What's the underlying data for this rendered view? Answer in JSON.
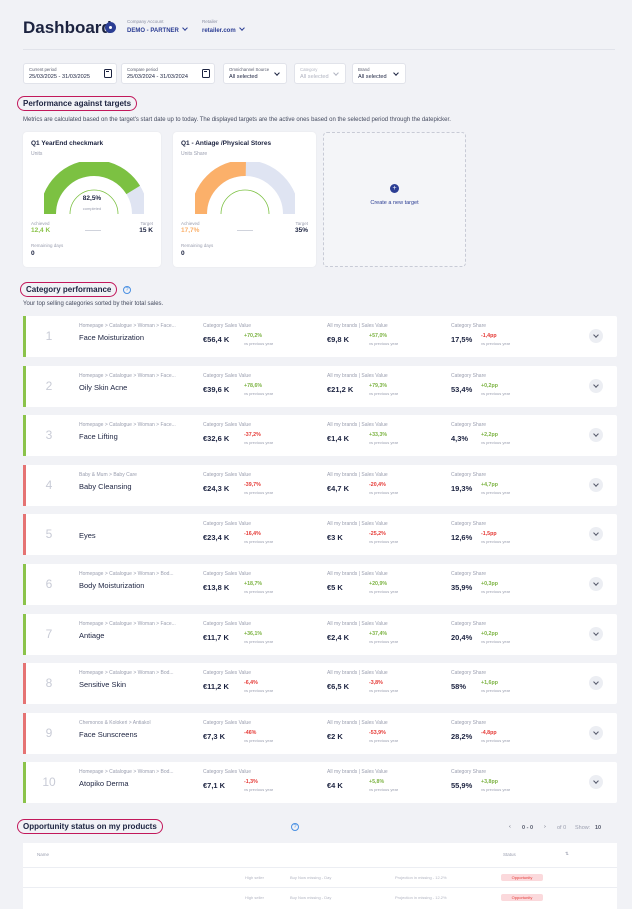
{
  "header": {
    "title": "Dashboard",
    "company_account_label": "Company Account",
    "company_account_value": "DEMO - PARTNER",
    "retailer_label": "Retailer",
    "retailer_value": "retailer.com"
  },
  "filters": {
    "current_period_label": "Current period",
    "current_period_value": "25/03/2025 - 31/03/2025",
    "compare_period_label": "Compare period",
    "compare_period_value": "25/03/2024 - 31/03/2024",
    "omnichannel_label": "Omnichannel Source",
    "omnichannel_value": "All selected",
    "category_label": "Category",
    "category_value": "All selected",
    "brand_label": "Brand",
    "brand_value": "All selected"
  },
  "targets": {
    "title": "Performance against targets",
    "description": "Metrics are calculated based on the target's start date up to today. The displayed targets are the active ones based on the selected period through the datepicker.",
    "cards": [
      {
        "title": "Q1 YearEnd checkmark",
        "unit": "Units",
        "center_value": "82,5%",
        "center_label": "completed",
        "achieved_label": "Achieved",
        "achieved_value": "12,4 K",
        "target_label": "Target",
        "target_value": "15 K",
        "remaining_label": "Remaining days",
        "remaining_value": "0",
        "progress": 0.825,
        "color": "#7cc142"
      },
      {
        "title": "Q1 - Antiage /Physical Stores",
        "unit": "Units Share",
        "achieved_label": "Achieved",
        "achieved_value": "17,7%",
        "target_label": "Target",
        "target_value": "35%",
        "remaining_label": "Remaining days",
        "remaining_value": "0",
        "progress": 0.506,
        "color": "#fbb06a"
      }
    ],
    "new_target_label": "Create a new target"
  },
  "category": {
    "title": "Category performance",
    "help": "?",
    "description": "Your top selling categories sorted by their total sales.",
    "col1_label": "Category Sales Value",
    "col2_label": "All my brands | Sales Value",
    "col3_label": "Category Share",
    "vs_label": "vs previous year",
    "rows": [
      {
        "rank": "1",
        "path": "Homepage > Catalogue > Woman > Face...",
        "name": "Face Moisturization",
        "v1": "€56,4 K",
        "p1": "+70,2%",
        "v2": "€9,8 K",
        "p2": "+57,0%",
        "v3": "17,5%",
        "p3": "-1,4pp",
        "trend": "pos",
        "d1": "pos",
        "d2": "pos",
        "d3": "neg"
      },
      {
        "rank": "2",
        "path": "Homepage > Catalogue > Woman > Face...",
        "name": "Oily Skin Acne",
        "v1": "€39,6 K",
        "p1": "+78,6%",
        "v2": "€21,2 K",
        "p2": "+79,3%",
        "v3": "53,4%",
        "p3": "+0,2pp",
        "trend": "pos",
        "d1": "pos",
        "d2": "pos",
        "d3": "pos"
      },
      {
        "rank": "3",
        "path": "Homepage > Catalogue > Woman > Face...",
        "name": "Face Lifting",
        "v1": "€32,6 K",
        "p1": "-37,2%",
        "v2": "€1,4 K",
        "p2": "+33,3%",
        "v3": "4,3%",
        "p3": "+2,2pp",
        "trend": "pos",
        "d1": "neg",
        "d2": "pos",
        "d3": "pos"
      },
      {
        "rank": "4",
        "path": "Baby & Mum > Baby Care",
        "name": "Baby Cleansing",
        "v1": "€24,3 K",
        "p1": "-39,7%",
        "v2": "€4,7 K",
        "p2": "-20,4%",
        "v3": "19,3%",
        "p3": "+4,7pp",
        "trend": "neg",
        "d1": "neg",
        "d2": "neg",
        "d3": "pos"
      },
      {
        "rank": "5",
        "path": "",
        "name": "Eyes",
        "v1": "€23,4 K",
        "p1": "-16,4%",
        "v2": "€3 K",
        "p2": "-25,2%",
        "v3": "12,6%",
        "p3": "-1,5pp",
        "trend": "neg",
        "d1": "neg",
        "d2": "neg",
        "d3": "neg"
      },
      {
        "rank": "6",
        "path": "Homepage > Catalogue > Woman > Bod...",
        "name": "Body Moisturization",
        "v1": "€13,8 K",
        "p1": "+18,7%",
        "v2": "€5 K",
        "p2": "+20,9%",
        "v3": "35,9%",
        "p3": "+0,3pp",
        "trend": "pos",
        "d1": "pos",
        "d2": "pos",
        "d3": "pos"
      },
      {
        "rank": "7",
        "path": "Homepage > Catalogue > Woman > Face...",
        "name": "Antiage",
        "v1": "€11,7 K",
        "p1": "+36,1%",
        "v2": "€2,4 K",
        "p2": "+37,4%",
        "v3": "20,4%",
        "p3": "+0,2pp",
        "trend": "pos",
        "d1": "pos",
        "d2": "pos",
        "d3": "pos"
      },
      {
        "rank": "8",
        "path": "Homepage > Catalogue > Woman > Bod...",
        "name": "Sensitive Skin",
        "v1": "€11,2 K",
        "p1": "-6,4%",
        "v2": "€6,5 K",
        "p2": "-3,8%",
        "v3": "58%",
        "p3": "+1,6pp",
        "trend": "neg",
        "d1": "neg",
        "d2": "neg",
        "d3": "pos"
      },
      {
        "rank": "9",
        "path": "Chemonos & Kolokeri > Antiakol",
        "name": "Face Sunscreens",
        "v1": "€7,3 K",
        "p1": "-46%",
        "v2": "€2 K",
        "p2": "-53,9%",
        "v3": "28,2%",
        "p3": "-4,8pp",
        "trend": "neg",
        "d1": "neg",
        "d2": "neg",
        "d3": "neg"
      },
      {
        "rank": "10",
        "path": "Homepage > Catalogue > Woman > Bod...",
        "name": "Atopiko Derma",
        "v1": "€7,1 K",
        "p1": "-1,3%",
        "v2": "€4 K",
        "p2": "+5,8%",
        "v3": "55,9%",
        "p3": "+3,8pp",
        "trend": "pos",
        "d1": "neg",
        "d2": "pos",
        "d3": "pos"
      }
    ]
  },
  "opportunity": {
    "title": "Opportunity status on my products",
    "help": "?",
    "pager_range": "0 - 0",
    "pager_of": "of 0",
    "show_label": "Show:",
    "show_value": "10",
    "col_name": "Name",
    "col_status": "Status",
    "row_type": "High seller",
    "row_text1": "Buy Now missing - Day",
    "row_text2": "Projection in missing - 12.2%",
    "row_badge": "Opportunity"
  },
  "colors": {
    "pos": "#8bc34a",
    "neg": "#e57373",
    "accent": "#2c3e94",
    "highlight": "#c2185b"
  }
}
